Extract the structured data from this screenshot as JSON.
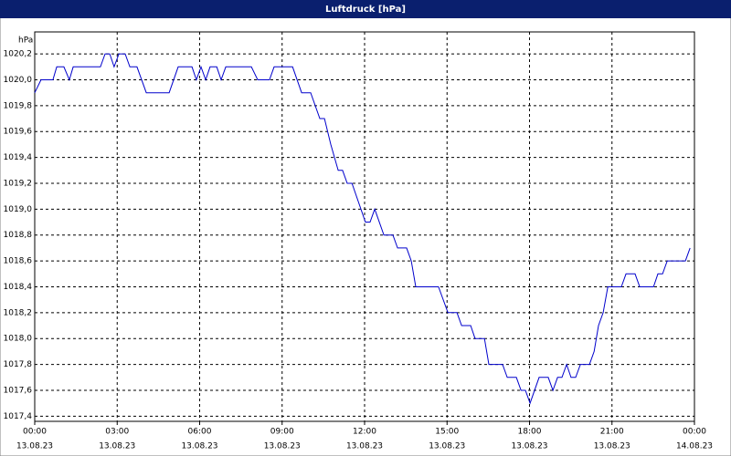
{
  "chart_data": {
    "type": "line",
    "title": "Luftdruck [hPa]",
    "y_unit": "hPa",
    "x": [
      0,
      0.23,
      0.66,
      0.8,
      1.06,
      1.26,
      1.4,
      2.39,
      2.56,
      2.73,
      2.89,
      3.06,
      3.29,
      3.46,
      3.72,
      4.06,
      4.89,
      5.22,
      5.72,
      5.88,
      6.05,
      6.22,
      6.38,
      6.62,
      6.78,
      6.95,
      7.88,
      8.11,
      8.54,
      8.71,
      9.38,
      9.71,
      10.04,
      10.37,
      10.54,
      10.77,
      11.04,
      11.2,
      11.37,
      11.54,
      12.03,
      12.2,
      12.37,
      12.7,
      13.03,
      13.2,
      13.53,
      13.7,
      13.86,
      14.69,
      15.03,
      15.36,
      15.53,
      15.86,
      16.02,
      16.36,
      16.52,
      17.02,
      17.19,
      17.52,
      17.69,
      17.85,
      18.02,
      18.35,
      18.68,
      18.85,
      19.02,
      19.18,
      19.35,
      19.51,
      19.68,
      19.85,
      20.18,
      20.35,
      20.51,
      20.68,
      20.85,
      21.34,
      21.51,
      21.84,
      22.01,
      22.51,
      22.67,
      22.84,
      23.01,
      23.67,
      23.84
    ],
    "series": [
      {
        "name": "Luftdruck",
        "color": "#0000cc",
        "values": [
          1019.9,
          1020.0,
          1020.0,
          1020.1,
          1020.1,
          1020.0,
          1020.1,
          1020.1,
          1020.2,
          1020.2,
          1020.1,
          1020.2,
          1020.2,
          1020.1,
          1020.1,
          1019.9,
          1019.9,
          1020.1,
          1020.1,
          1020.0,
          1020.1,
          1020.0,
          1020.1,
          1020.1,
          1020.0,
          1020.1,
          1020.1,
          1020.0,
          1020.0,
          1020.1,
          1020.1,
          1019.9,
          1019.9,
          1019.7,
          1019.7,
          1019.5,
          1019.3,
          1019.3,
          1019.2,
          1019.2,
          1018.9,
          1018.9,
          1019.0,
          1018.8,
          1018.8,
          1018.7,
          1018.7,
          1018.6,
          1018.4,
          1018.4,
          1018.2,
          1018.2,
          1018.1,
          1018.1,
          1018.0,
          1018.0,
          1017.8,
          1017.8,
          1017.7,
          1017.7,
          1017.6,
          1017.6,
          1017.5,
          1017.7,
          1017.7,
          1017.6,
          1017.7,
          1017.7,
          1017.8,
          1017.7,
          1017.7,
          1017.8,
          1017.8,
          1017.9,
          1018.1,
          1018.2,
          1018.4,
          1018.4,
          1018.5,
          1018.5,
          1018.4,
          1018.4,
          1018.5,
          1018.5,
          1018.6,
          1018.6,
          1018.7
        ]
      }
    ],
    "xlim": [
      0,
      24
    ],
    "xticks": [
      {
        "value": 0,
        "label": "00:00",
        "date": "13.08.23"
      },
      {
        "value": 3,
        "label": "03:00",
        "date": "13.08.23"
      },
      {
        "value": 6,
        "label": "06:00",
        "date": "13.08.23"
      },
      {
        "value": 9,
        "label": "09:00",
        "date": "13.08.23"
      },
      {
        "value": 12,
        "label": "12:00",
        "date": "13.08.23"
      },
      {
        "value": 15,
        "label": "15:00",
        "date": "13.08.23"
      },
      {
        "value": 18,
        "label": "18:00",
        "date": "13.08.23"
      },
      {
        "value": 21,
        "label": "21:00",
        "date": "13.08.23"
      },
      {
        "value": 24,
        "label": "00:00",
        "date": "14.08.23"
      }
    ],
    "ylim": [
      1017.36,
      1020.37
    ],
    "yticks": [
      {
        "value": 1017.4,
        "label": "1017,4"
      },
      {
        "value": 1017.6,
        "label": "1017,6"
      },
      {
        "value": 1017.8,
        "label": "1017,8"
      },
      {
        "value": 1018.0,
        "label": "1018,0"
      },
      {
        "value": 1018.2,
        "label": "1018,2"
      },
      {
        "value": 1018.4,
        "label": "1018,4"
      },
      {
        "value": 1018.6,
        "label": "1018,6"
      },
      {
        "value": 1018.8,
        "label": "1018,8"
      },
      {
        "value": 1019.0,
        "label": "1019,0"
      },
      {
        "value": 1019.2,
        "label": "1019,2"
      },
      {
        "value": 1019.4,
        "label": "1019,4"
      },
      {
        "value": 1019.6,
        "label": "1019,6"
      },
      {
        "value": 1019.8,
        "label": "1019,8"
      },
      {
        "value": 1020.0,
        "label": "1020,0"
      },
      {
        "value": 1020.2,
        "label": "1020,2"
      }
    ],
    "grid": true
  }
}
